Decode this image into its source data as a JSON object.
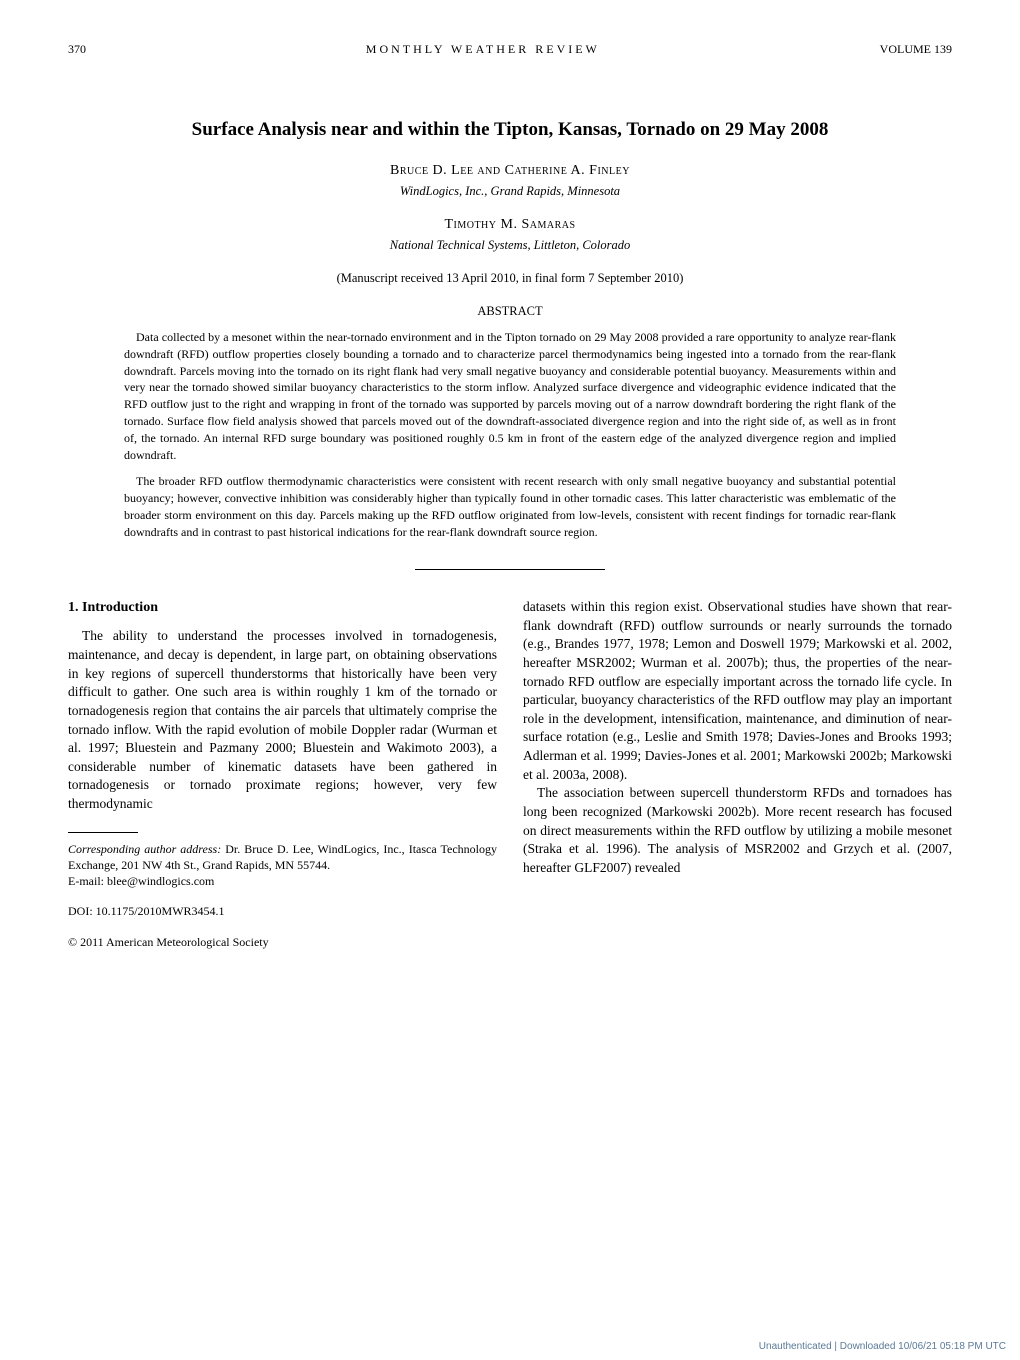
{
  "header": {
    "page_number": "370",
    "journal": "MONTHLY WEATHER REVIEW",
    "volume": "VOLUME 139"
  },
  "title": "Surface Analysis near and within the Tipton, Kansas, Tornado on 29 May 2008",
  "authors_block_1": {
    "names": "Bruce D. Lee and Catherine A. Finley",
    "affiliation": "WindLogics, Inc., Grand Rapids, Minnesota"
  },
  "authors_block_2": {
    "names": "Timothy M. Samaras",
    "affiliation": "National Technical Systems, Littleton, Colorado"
  },
  "manuscript": "(Manuscript received 13 April 2010, in final form 7 September 2010)",
  "abstract": {
    "heading": "ABSTRACT",
    "p1": "Data collected by a mesonet within the near-tornado environment and in the Tipton tornado on 29 May 2008 provided a rare opportunity to analyze rear-flank downdraft (RFD) outflow properties closely bounding a tornado and to characterize parcel thermodynamics being ingested into a tornado from the rear-flank downdraft. Parcels moving into the tornado on its right flank had very small negative buoyancy and considerable potential buoyancy. Measurements within and very near the tornado showed similar buoyancy characteristics to the storm inflow. Analyzed surface divergence and videographic evidence indicated that the RFD outflow just to the right and wrapping in front of the tornado was supported by parcels moving out of a narrow downdraft bordering the right flank of the tornado. Surface flow field analysis showed that parcels moved out of the downdraft-associated divergence region and into the right side of, as well as in front of, the tornado. An internal RFD surge boundary was positioned roughly 0.5 km in front of the eastern edge of the analyzed divergence region and implied downdraft.",
    "p2": "The broader RFD outflow thermodynamic characteristics were consistent with recent research with only small negative buoyancy and substantial potential buoyancy; however, convective inhibition was considerably higher than typically found in other tornadic cases. This latter characteristic was emblematic of the broader storm environment on this day. Parcels making up the RFD outflow originated from low-levels, consistent with recent findings for tornadic rear-flank downdrafts and in contrast to past historical indications for the rear-flank downdraft source region."
  },
  "section1": {
    "title": "1. Introduction",
    "left": "The ability to understand the processes involved in tornadogenesis, maintenance, and decay is dependent, in large part, on obtaining observations in key regions of supercell thunderstorms that historically have been very difficult to gather. One such area is within roughly 1 km of the tornado or tornadogenesis region that contains the air parcels that ultimately comprise the tornado inflow. With the rapid evolution of mobile Doppler radar (Wurman et al. 1997; Bluestein and Pazmany 2000; Bluestein and Wakimoto 2003), a considerable number of kinematic datasets have been gathered in tornadogenesis or tornado proximate regions; however, very few thermodynamic",
    "right_p1": "datasets within this region exist. Observational studies have shown that rear-flank downdraft (RFD) outflow surrounds or nearly surrounds the tornado (e.g., Brandes 1977, 1978; Lemon and Doswell 1979; Markowski et al. 2002, hereafter MSR2002; Wurman et al. 2007b); thus, the properties of the near-tornado RFD outflow are especially important across the tornado life cycle. In particular, buoyancy characteristics of the RFD outflow may play an important role in the development, intensification, maintenance, and diminution of near-surface rotation (e.g., Leslie and Smith 1978; Davies-Jones and Brooks 1993; Adlerman et al. 1999; Davies-Jones et al. 2001; Markowski 2002b; Markowski et al. 2003a, 2008).",
    "right_p2": "The association between supercell thunderstorm RFDs and tornadoes has long been recognized (Markowski 2002b). More recent research has focused on direct measurements within the RFD outflow by utilizing a mobile mesonet (Straka et al. 1996). The analysis of MSR2002 and Grzych et al. (2007, hereafter GLF2007) revealed"
  },
  "footnote": {
    "label": "Corresponding author address:",
    "text": " Dr. Bruce D. Lee, WindLogics, Inc., Itasca Technology Exchange, 201 NW 4th St., Grand Rapids, MN 55744.",
    "email": "E-mail: blee@windlogics.com"
  },
  "doi": "DOI: 10.1175/2010MWR3454.1",
  "copyright": "© 2011 American Meteorological Society",
  "watermark": "Unauthenticated | Downloaded 10/06/21 05:18 PM UTC",
  "colors": {
    "text": "#000000",
    "background": "#ffffff",
    "watermark": "#5b7a99"
  },
  "typography": {
    "title_fontsize": 19,
    "body_fontsize": 13.5,
    "abstract_fontsize": 12,
    "header_fontsize": 12,
    "footnote_fontsize": 12
  }
}
